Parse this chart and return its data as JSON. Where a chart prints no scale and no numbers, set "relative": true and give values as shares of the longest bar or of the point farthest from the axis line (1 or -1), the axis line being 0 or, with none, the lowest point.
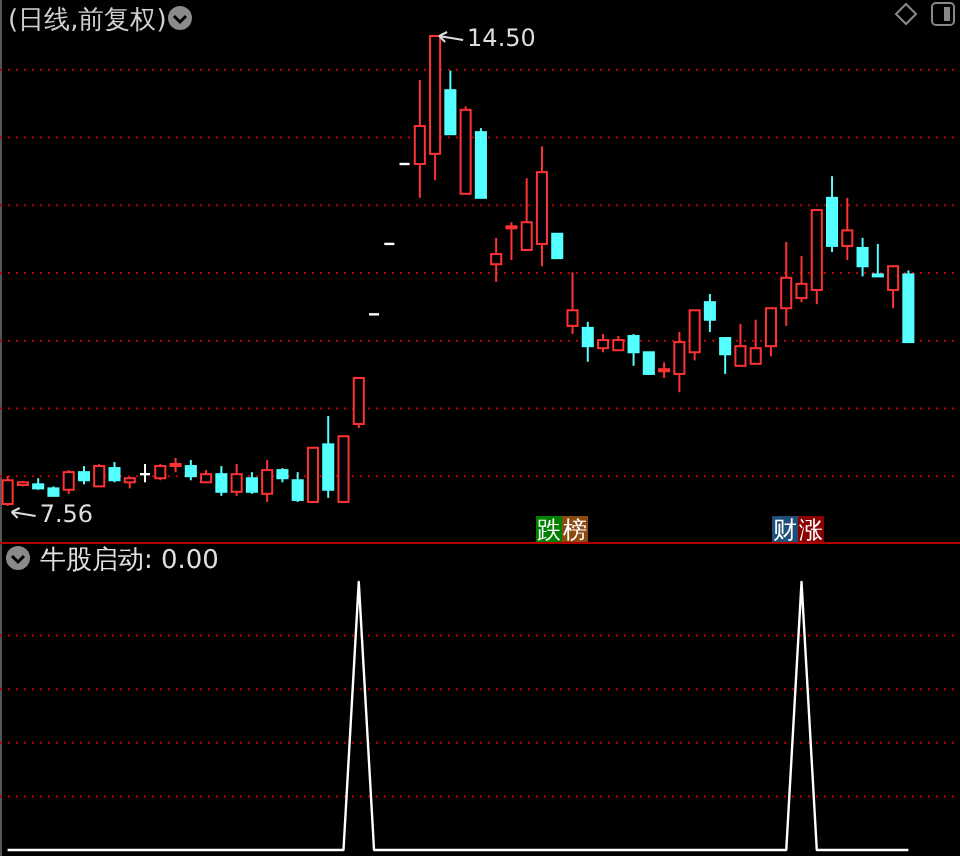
{
  "chart_data": [
    {
      "type": "candlestick",
      "title": "(日线,前复权)",
      "categories": [
        null,
        null,
        null,
        null,
        null,
        null,
        null,
        null,
        null,
        null,
        null,
        null,
        null,
        null,
        null,
        null,
        null,
        null,
        null,
        null,
        null,
        null,
        null,
        null,
        null,
        null,
        null,
        null,
        null,
        null,
        null,
        null,
        null,
        null,
        null,
        null,
        null,
        null,
        null,
        null,
        null,
        null,
        null,
        null,
        null,
        null,
        null,
        null,
        null,
        null,
        null,
        null,
        null,
        null,
        null,
        null,
        null,
        null,
        null,
        null
      ],
      "ohlc": [
        [
          7.59,
          8.0,
          7.56,
          7.94
        ],
        [
          7.87,
          7.93,
          7.85,
          7.91
        ],
        [
          7.88,
          7.97,
          7.8,
          7.82
        ],
        [
          7.82,
          7.85,
          7.71,
          7.71
        ],
        [
          7.8,
          8.09,
          7.74,
          8.06
        ],
        [
          8.06,
          8.15,
          7.88,
          7.94
        ],
        [
          7.85,
          8.18,
          7.85,
          8.15
        ],
        [
          8.12,
          8.21,
          7.91,
          7.94
        ],
        [
          7.91,
          7.99,
          7.82,
          7.97
        ],
        [
          8.03,
          8.18,
          7.91,
          8.03
        ],
        [
          7.97,
          8.18,
          7.94,
          8.15
        ],
        [
          8.16,
          8.27,
          8.06,
          8.18
        ],
        [
          8.15,
          8.24,
          7.94,
          8.0
        ],
        [
          7.91,
          8.09,
          7.91,
          8.03
        ],
        [
          8.03,
          8.15,
          7.71,
          7.77
        ],
        [
          7.77,
          8.18,
          7.71,
          8.03
        ],
        [
          7.97,
          8.06,
          7.74,
          7.77
        ],
        [
          7.74,
          8.24,
          7.62,
          8.09
        ],
        [
          8.09,
          8.12,
          7.91,
          7.97
        ],
        [
          7.94,
          8.06,
          7.62,
          7.65
        ],
        [
          7.62,
          8.42,
          7.62,
          8.42
        ],
        [
          8.47,
          8.89,
          7.68,
          7.8
        ],
        [
          7.62,
          8.59,
          7.62,
          8.59
        ],
        [
          8.77,
          9.45,
          8.71,
          9.45
        ],
        [
          10.39,
          10.39,
          10.39,
          10.39
        ],
        [
          11.43,
          11.43,
          11.43,
          11.43
        ],
        [
          12.61,
          12.61,
          12.61,
          12.61
        ],
        [
          12.61,
          13.85,
          12.11,
          13.17
        ],
        [
          12.76,
          14.5,
          12.37,
          14.5
        ],
        [
          13.7,
          13.99,
          13.05,
          13.05
        ],
        [
          12.17,
          13.46,
          12.17,
          13.41
        ],
        [
          13.08,
          13.14,
          12.11,
          12.11
        ],
        [
          11.13,
          11.52,
          10.87,
          11.28
        ],
        [
          11.66,
          11.75,
          11.19,
          11.69
        ],
        [
          11.34,
          12.4,
          11.34,
          11.75
        ],
        [
          11.43,
          12.87,
          11.1,
          12.49
        ],
        [
          11.58,
          11.58,
          11.22,
          11.22
        ],
        [
          10.22,
          11.01,
          10.1,
          10.45
        ],
        [
          10.19,
          10.28,
          9.69,
          9.92
        ],
        [
          9.89,
          10.1,
          9.83,
          10.01
        ],
        [
          9.86,
          10.07,
          9.86,
          10.01
        ],
        [
          10.07,
          10.1,
          9.63,
          9.83
        ],
        [
          9.83,
          9.83,
          9.51,
          9.51
        ],
        [
          9.55,
          9.68,
          9.45,
          9.58
        ],
        [
          9.51,
          10.13,
          9.24,
          9.98
        ],
        [
          9.83,
          10.45,
          9.71,
          10.45
        ],
        [
          10.57,
          10.69,
          10.13,
          10.31
        ],
        [
          10.04,
          10.04,
          9.51,
          9.8
        ],
        [
          9.63,
          10.25,
          9.63,
          9.92
        ],
        [
          9.66,
          10.31,
          9.66,
          9.89
        ],
        [
          9.92,
          10.48,
          9.77,
          10.48
        ],
        [
          10.48,
          11.46,
          10.22,
          10.93
        ],
        [
          10.63,
          11.25,
          10.57,
          10.84
        ],
        [
          10.75,
          11.93,
          10.54,
          11.93
        ],
        [
          12.11,
          12.43,
          11.31,
          11.4
        ],
        [
          11.4,
          12.11,
          11.19,
          11.63
        ],
        [
          11.37,
          11.52,
          10.95,
          11.1
        ],
        [
          10.98,
          11.43,
          10.95,
          10.97
        ],
        [
          10.75,
          11.1,
          10.48,
          11.1
        ],
        [
          10.98,
          11.04,
          9.98,
          9.98
        ]
      ],
      "yticks": [
        {
          "value": 8,
          "label": null
        },
        {
          "value": 9,
          "label": null
        },
        {
          "value": 10,
          "label": null
        },
        {
          "value": 11,
          "label": null
        },
        {
          "value": 12,
          "label": null
        },
        {
          "value": 13,
          "label": null
        },
        {
          "value": 14,
          "label": null
        }
      ],
      "grid": "y",
      "annotations": [
        "14.50",
        "7.56",
        "跌",
        "榜",
        "财",
        "涨"
      ]
    },
    {
      "type": "line",
      "title": "牛股启动: 0.00",
      "relative": true,
      "categories": [
        null,
        null,
        null,
        null,
        null,
        null,
        null,
        null,
        null,
        null,
        null,
        null,
        null,
        null,
        null,
        null,
        null,
        null,
        null,
        null,
        null,
        null,
        null,
        null,
        null,
        null,
        null,
        null,
        null,
        null,
        null,
        null,
        null,
        null,
        null,
        null,
        null,
        null,
        null,
        null,
        null,
        null,
        null,
        null,
        null,
        null,
        null,
        null,
        null,
        null,
        null,
        null,
        null,
        null,
        null,
        null,
        null,
        null,
        null,
        null
      ],
      "series": [
        {
          "color": "#ffffff",
          "values": [
            0,
            0,
            0,
            0,
            0,
            0,
            0,
            0,
            0,
            0,
            0,
            0,
            0,
            0,
            0,
            0,
            0,
            0,
            0,
            0,
            0,
            0,
            0,
            1,
            0,
            0,
            0,
            0,
            0,
            0,
            0,
            0,
            0,
            0,
            0,
            0,
            0,
            0,
            0,
            0,
            0,
            0,
            0,
            0,
            0,
            0,
            0,
            0,
            0,
            0,
            0,
            0,
            1,
            0,
            0,
            0,
            0,
            0,
            0,
            0
          ]
        }
      ],
      "ref_lines": [
        {
          "axis": "y",
          "value": 0.2,
          "color": "#c00000",
          "line_style": "dotted"
        },
        {
          "axis": "y",
          "value": 0.4,
          "color": "#c00000",
          "line_style": "dotted"
        },
        {
          "axis": "y",
          "value": 0.6,
          "color": "#c00000",
          "line_style": "dotted"
        },
        {
          "axis": "y",
          "value": 0.8,
          "color": "#c00000",
          "line_style": "dotted"
        }
      ]
    }
  ]
}
